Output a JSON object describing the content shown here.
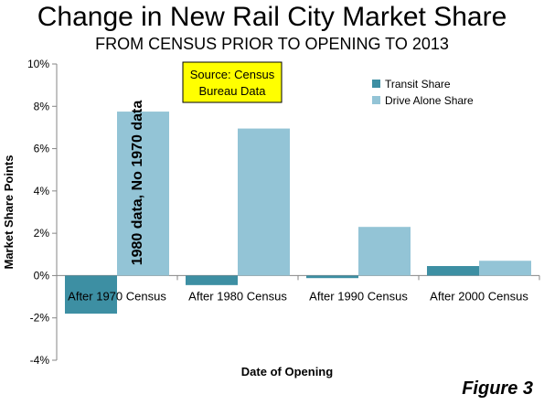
{
  "chart_data": {
    "type": "bar",
    "title": "Change in New Rail City Market Share",
    "subtitle": "FROM CENSUS PRIOR TO OPENING TO 2013",
    "xlabel": "Date of Opening",
    "ylabel": "Market Share Points",
    "ylim": [
      -4,
      10
    ],
    "yticks": [
      -4,
      -2,
      0,
      2,
      4,
      6,
      8,
      10
    ],
    "tick_suffix": "%",
    "categories": [
      "After 1970 Census",
      "After 1980 Census",
      "After 1990 Census",
      "After 2000 Census"
    ],
    "series": [
      {
        "name": "Transit Share",
        "color": "#3d8fa3",
        "values": [
          -1.8,
          -0.45,
          -0.12,
          0.45
        ]
      },
      {
        "name": "Drive Alone Share",
        "color": "#93c4d6",
        "values": [
          7.75,
          6.95,
          2.3,
          0.7
        ]
      }
    ],
    "legend_position": "top-right",
    "grid": false,
    "annotations": {
      "source_box": {
        "line1": "Source: Census",
        "line2": "Bureau Data",
        "fill": "#ffff00"
      },
      "bar_note": "1980 data, No 1970 data"
    }
  },
  "figure_label": "Figure 3"
}
